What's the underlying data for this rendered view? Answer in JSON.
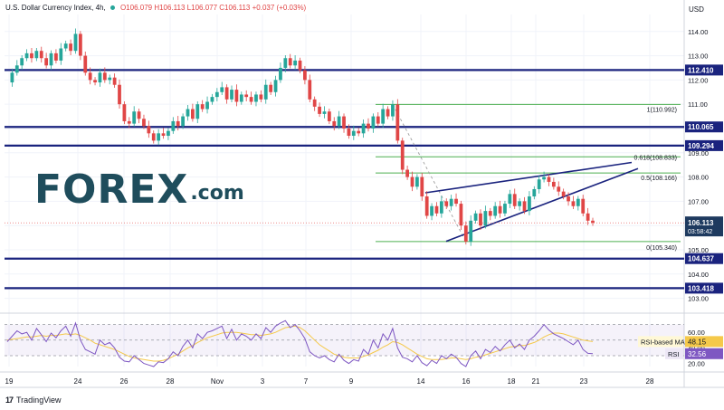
{
  "header": {
    "symbol": "U.S. Dollar Currency Index, 4h,",
    "open": "O106.079",
    "high": "H106.113",
    "low": "L106.077",
    "close": "C106.113",
    "change": "+0.037 (+0.03%)"
  },
  "currency": "USD",
  "brand": {
    "forex_main": "FOREX",
    "forex_tld": ".com",
    "tradingview": "TradingView"
  },
  "colors": {
    "up": "#26a69a",
    "down": "#e04646",
    "level": "#1a237e",
    "fib": "#4caf50",
    "rsi": "#7e57c2",
    "rsi_ma": "#f5c94a"
  },
  "chart_data": [
    {
      "type": "line",
      "title": "U.S. Dollar Currency Index, 4h",
      "x_ticks": [
        "19",
        "24",
        "26",
        "28",
        "Nov",
        "3",
        "7",
        "9",
        "14",
        "16",
        "18",
        "21",
        "23",
        "28"
      ],
      "y_ticks": [
        103.0,
        104.0,
        105.0,
        106.0,
        107.0,
        108.0,
        109.0,
        110.0,
        111.0,
        112.0,
        113.0,
        114.0
      ],
      "ylim": [
        102.5,
        114.7
      ],
      "series": [
        {
          "values": [
            111.9,
            112.3,
            112.6,
            112.9,
            113.1,
            112.9,
            113.2,
            112.9,
            112.6,
            113.1,
            112.8,
            113.3,
            113.5,
            113.2,
            113.9,
            113.0,
            112.3,
            112.0,
            111.9,
            112.3,
            112.0,
            112.1,
            111.8,
            111.0,
            110.3,
            110.2,
            110.7,
            110.4,
            110.1,
            109.8,
            109.5,
            109.8,
            109.7,
            109.9,
            110.3,
            110.1,
            110.5,
            110.8,
            110.4,
            111.0,
            110.8,
            111.1,
            111.3,
            111.5,
            111.7,
            111.2,
            111.6,
            111.1,
            111.4,
            111.3,
            111.1,
            111.4,
            111.2,
            111.8,
            111.5,
            112.0,
            112.5,
            112.9,
            112.6,
            112.8,
            112.4,
            112.0,
            111.2,
            110.9,
            110.6,
            110.7,
            110.3,
            110.1,
            110.5,
            110.0,
            109.7,
            109.9,
            109.8,
            110.2,
            110.0,
            110.5,
            110.2,
            110.8,
            110.5,
            110.99,
            109.5,
            108.3,
            108.0,
            107.6,
            108.0,
            107.2,
            106.4,
            106.8,
            106.5,
            107.0,
            106.8,
            107.1,
            106.9,
            106.0,
            105.34,
            106.2,
            106.5,
            106.0,
            106.6,
            106.4,
            106.8,
            106.5,
            106.9,
            107.3,
            106.8,
            107.0,
            106.6,
            107.2,
            107.5,
            107.9,
            108.0,
            107.8,
            107.6,
            107.4,
            107.2,
            107.0,
            106.8,
            107.1,
            106.5,
            106.2,
            106.11
          ]
        }
      ],
      "levels": [
        112.41,
        110.065,
        109.294,
        104.637,
        103.418
      ],
      "fibonacci": [
        {
          "ratio": "1",
          "value": 110.992,
          "label": "1(110.992)"
        },
        {
          "ratio": "0.618",
          "value": 108.833,
          "label": "0.618(108.833)"
        },
        {
          "ratio": "0.5",
          "value": 108.166,
          "label": "0.5(108.166)"
        },
        {
          "ratio": "0",
          "value": 105.34,
          "label": "0(105.340)"
        }
      ],
      "price_labels": [
        "112.410",
        "110.065",
        "109.294",
        "104.637",
        "103.418",
        "106.113"
      ],
      "last_price": {
        "value": 106.113,
        "label": "106.113",
        "countdown": "03:58:42"
      }
    },
    {
      "type": "line",
      "title": "RSI",
      "ylim": [
        16,
        80
      ],
      "y_ticks": [
        20.0,
        40.0,
        60.0
      ],
      "series": [
        {
          "name": "RSI",
          "values": [
            48,
            55,
            62,
            58,
            60,
            50,
            65,
            57,
            48,
            59,
            53,
            62,
            68,
            55,
            72,
            50,
            38,
            35,
            32,
            50,
            44,
            47,
            40,
            28,
            23,
            22,
            30,
            25,
            20,
            18,
            16,
            22,
            21,
            26,
            35,
            30,
            42,
            50,
            40,
            58,
            52,
            60,
            62,
            65,
            68,
            52,
            64,
            50,
            58,
            55,
            50,
            58,
            52,
            66,
            60,
            68,
            72,
            75,
            66,
            70,
            62,
            52,
            35,
            30,
            27,
            30,
            25,
            22,
            32,
            24,
            20,
            25,
            23,
            38,
            32,
            50,
            40,
            58,
            50,
            65,
            40,
            28,
            26,
            22,
            30,
            21,
            17,
            24,
            20,
            30,
            26,
            32,
            28,
            20,
            16,
            30,
            36,
            26,
            38,
            34,
            42,
            36,
            44,
            50,
            40,
            45,
            38,
            50,
            55,
            62,
            70,
            63,
            58,
            55,
            52,
            48,
            44,
            50,
            38,
            33,
            32.56
          ]
        },
        {
          "name": "RSI-based MA",
          "values": [
            50,
            51,
            52,
            53,
            54,
            54,
            55,
            56,
            55,
            56,
            56,
            57,
            58,
            57,
            58,
            56,
            53,
            50,
            46,
            44,
            42,
            40,
            38,
            35,
            32,
            29,
            27,
            26,
            25,
            24,
            23,
            23,
            24,
            26,
            29,
            32,
            36,
            40,
            43,
            47,
            50,
            53,
            55,
            57,
            59,
            60,
            60,
            60,
            59,
            58,
            57,
            57,
            56,
            57,
            58,
            60,
            63,
            66,
            67,
            68,
            66,
            62,
            56,
            50,
            44,
            40,
            36,
            32,
            30,
            28,
            27,
            27,
            27,
            29,
            31,
            34,
            37,
            41,
            44,
            48,
            47,
            44,
            40,
            36,
            32,
            29,
            26,
            25,
            25,
            25,
            26,
            27,
            27,
            26,
            25,
            26,
            28,
            29,
            31,
            33,
            35,
            37,
            39,
            41,
            42,
            43,
            43,
            45,
            47,
            50,
            54,
            57,
            59,
            59,
            58,
            56,
            54,
            52,
            50,
            49,
            48.15
          ]
        }
      ],
      "rsi_ma_label": "RSI-based MA",
      "rsi_ma_value": "48.15",
      "rsi_label": "RSI",
      "rsi_value": "32.56"
    }
  ]
}
